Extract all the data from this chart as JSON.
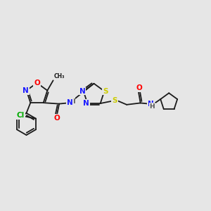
{
  "background_color": "#e6e6e6",
  "fig_width": 3.0,
  "fig_height": 3.0,
  "dpi": 100,
  "colors": {
    "N": "#1a1aff",
    "O": "#ff0000",
    "S": "#cccc00",
    "Cl": "#00aa00",
    "C": "#1a1a1a",
    "H": "#555555",
    "bond": "#1a1a1a"
  },
  "lw": 1.3
}
